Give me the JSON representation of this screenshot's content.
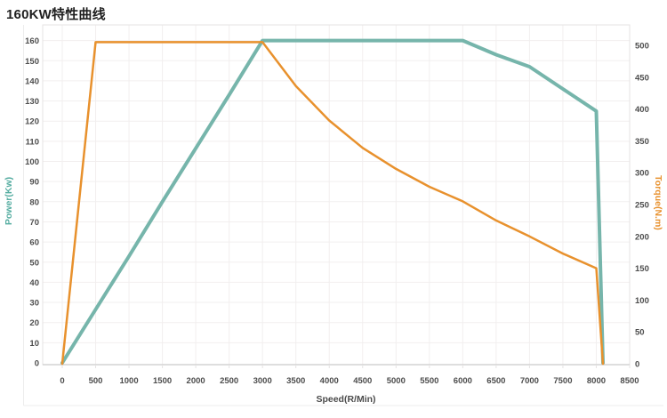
{
  "page": {
    "title": "160KW特性曲线"
  },
  "chart_data": {
    "type": "line",
    "title": "160KW特性曲线",
    "grid": true,
    "legend": "none",
    "x_axis": {
      "label": "Speed(R/Min)",
      "min": 0,
      "max": 8500,
      "tick_step": 500,
      "ticks": [
        0,
        500,
        1000,
        1500,
        2000,
        2500,
        3000,
        3500,
        4000,
        4500,
        5000,
        5500,
        6000,
        6500,
        7000,
        7500,
        8000,
        8500
      ]
    },
    "y_axis_left": {
      "label": "Power(Kw)",
      "min": 0,
      "max": 160,
      "tick_step": 10,
      "color": "#55ada1",
      "ticks": [
        0,
        10,
        20,
        30,
        40,
        50,
        60,
        70,
        80,
        90,
        100,
        110,
        120,
        130,
        140,
        150,
        160
      ]
    },
    "y_axis_right": {
      "label": "Torque(N.m)",
      "min": 0,
      "max": 500,
      "tick_step": 50,
      "color": "#e8912d",
      "ticks": [
        0,
        50,
        100,
        150,
        200,
        250,
        300,
        350,
        400,
        450,
        500
      ]
    },
    "series": [
      {
        "name": "Power(Kw)",
        "axis": "left",
        "color": "#76b5ab",
        "width": 4,
        "points": [
          [
            0,
            0
          ],
          [
            500,
            26.5
          ],
          [
            1000,
            53
          ],
          [
            1500,
            80
          ],
          [
            2000,
            106.5
          ],
          [
            2500,
            133
          ],
          [
            3000,
            160
          ],
          [
            3500,
            160
          ],
          [
            4000,
            160
          ],
          [
            4500,
            160
          ],
          [
            5000,
            160
          ],
          [
            5500,
            160
          ],
          [
            6000,
            160
          ],
          [
            6500,
            153
          ],
          [
            7000,
            147
          ],
          [
            7500,
            136
          ],
          [
            8000,
            125
          ],
          [
            8100,
            0
          ]
        ]
      },
      {
        "name": "Torque(N.m)",
        "axis": "right",
        "color": "#e8912d",
        "width": 2.5,
        "points": [
          [
            0,
            0
          ],
          [
            500,
            505
          ],
          [
            1000,
            505
          ],
          [
            1500,
            505
          ],
          [
            2000,
            505
          ],
          [
            2500,
            505
          ],
          [
            3000,
            505
          ],
          [
            3500,
            436
          ],
          [
            4000,
            382
          ],
          [
            4500,
            339
          ],
          [
            5000,
            306
          ],
          [
            5500,
            278
          ],
          [
            6000,
            255
          ],
          [
            6500,
            225
          ],
          [
            7000,
            200
          ],
          [
            7500,
            173
          ],
          [
            8000,
            150
          ],
          [
            8100,
            0
          ]
        ]
      }
    ],
    "style_colors": {
      "grid": "#f2efef",
      "plot_border": "#e5e3e3",
      "bottom_axis": "#c9c9c9",
      "tick_text": "#4c4c4c",
      "outer_frame": "#ededed"
    }
  }
}
